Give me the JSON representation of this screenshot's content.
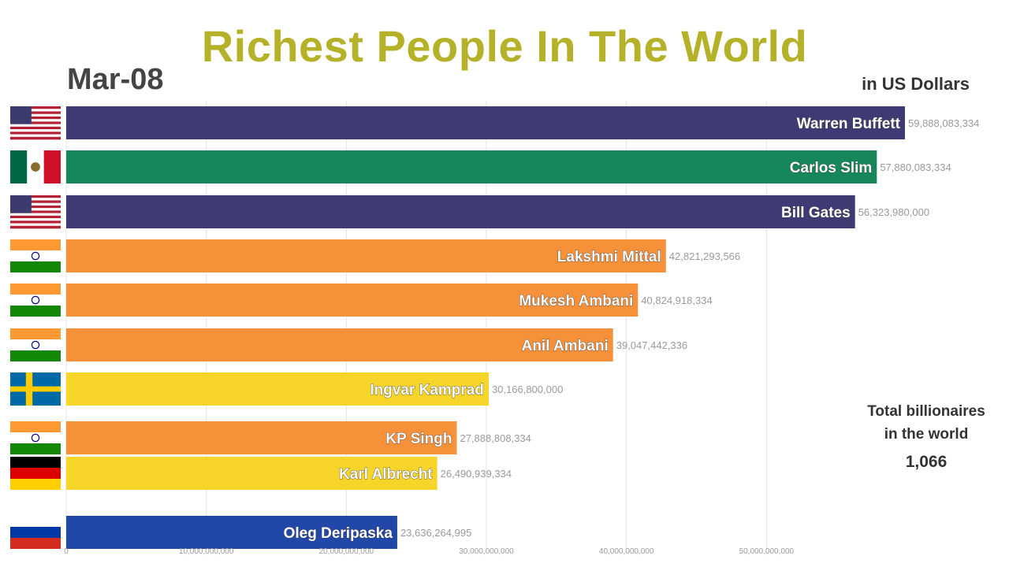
{
  "chart_data": {
    "type": "bar",
    "orientation": "horizontal",
    "title": "Richest People In The World",
    "date_label": "Mar-08",
    "unit_label": "in US Dollars",
    "categories": [
      "Warren Buffett",
      "Carlos Slim",
      "Bill Gates",
      "Lakshmi Mittal",
      "Mukesh Ambani",
      "Anil Ambani",
      "Ingvar Kamprad",
      "KP Singh",
      "Karl Albrecht",
      "Oleg Deripaska"
    ],
    "values": [
      59888083334,
      57880083334,
      56323980000,
      42821293566,
      40824918334,
      39047442336,
      30166800000,
      27888808334,
      26490939334,
      23636264995
    ],
    "value_labels": [
      "59,888,083,334",
      "57,880,083,334",
      "56,323,980,000",
      "42,821,293,566",
      "40,824,918,334",
      "39,047,442,336",
      "30,166,800,000",
      "27,888,808,334",
      "26,490,939,334",
      "23,636,264,995"
    ],
    "countries": [
      "usa",
      "mexico",
      "usa",
      "india",
      "india",
      "india",
      "sweden",
      "india",
      "germany",
      "russia"
    ],
    "bar_colors": [
      "#3f3a73",
      "#15875a",
      "#3f3a73",
      "#f6913a",
      "#f6913a",
      "#f6913a",
      "#f7d428",
      "#f6913a",
      "#f7d428",
      "#2148a8"
    ],
    "xlim": [
      0,
      60000000000
    ],
    "x_ticks": [
      0,
      10000000000,
      20000000000,
      30000000000,
      40000000000,
      50000000000
    ],
    "x_tick_labels": [
      "0",
      "10,000,000,000",
      "20,000,000,000",
      "30,000,000,000",
      "40,000,000,000",
      "50,000,000,000"
    ],
    "grid": true,
    "legend": "none"
  },
  "side_panel": {
    "label": "Total billionaires\nin the world",
    "value": "1,066"
  }
}
